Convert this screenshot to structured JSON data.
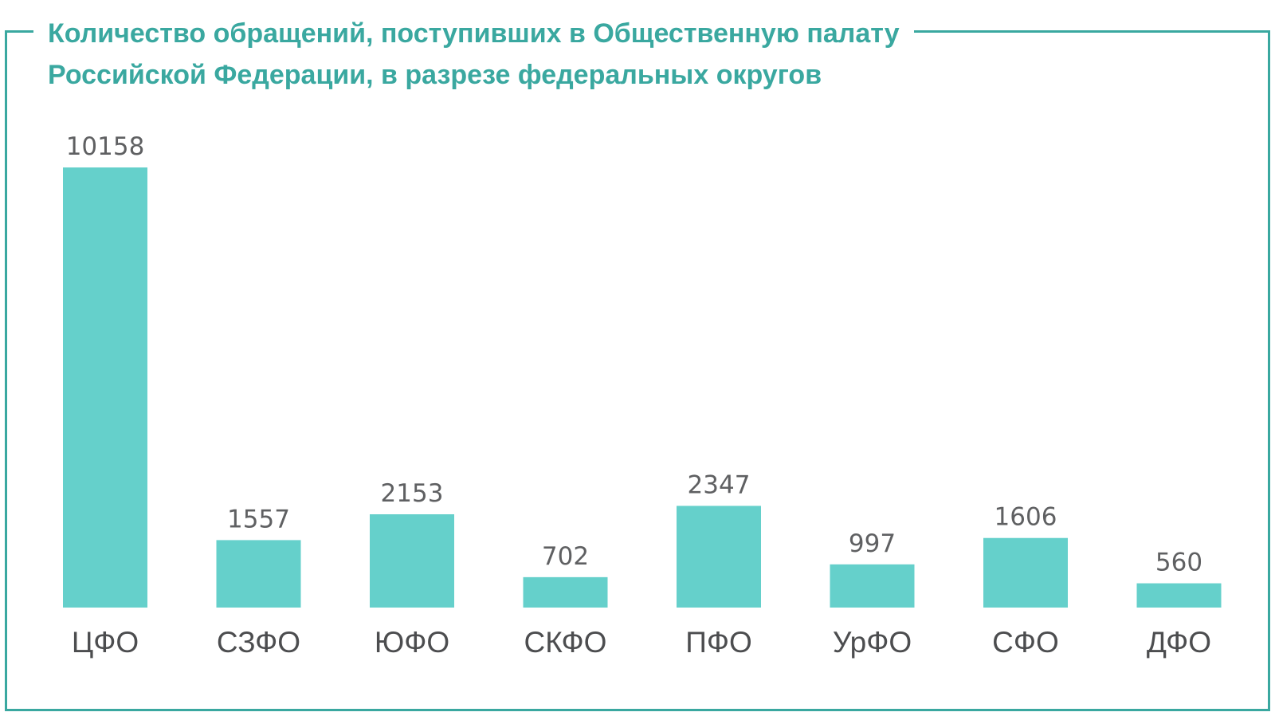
{
  "chart_data": {
    "type": "bar",
    "title_lines": [
      "Количество обращений, поступивших в Общественную палату",
      "Российской Федерации, в разрезе федеральных округов"
    ],
    "categories": [
      "ЦФО",
      "СЗФО",
      "ЮФО",
      "СКФО",
      "ПФО",
      "УрФО",
      "СФО",
      "ДФО"
    ],
    "values": [
      10158,
      1557,
      2153,
      702,
      2347,
      997,
      1606,
      560
    ],
    "value_labels": [
      "10158",
      "1557",
      "2153",
      "702",
      "2347",
      "997",
      "1606",
      "560"
    ],
    "xlabel": "",
    "ylabel": "",
    "ylim": [
      0,
      10158
    ],
    "grid": false,
    "legend": "none"
  },
  "colors": {
    "accent": "#3aa8a0",
    "bar": "#65d0cb",
    "value_text": "#5f6062",
    "category_text": "#4c4d4f"
  }
}
